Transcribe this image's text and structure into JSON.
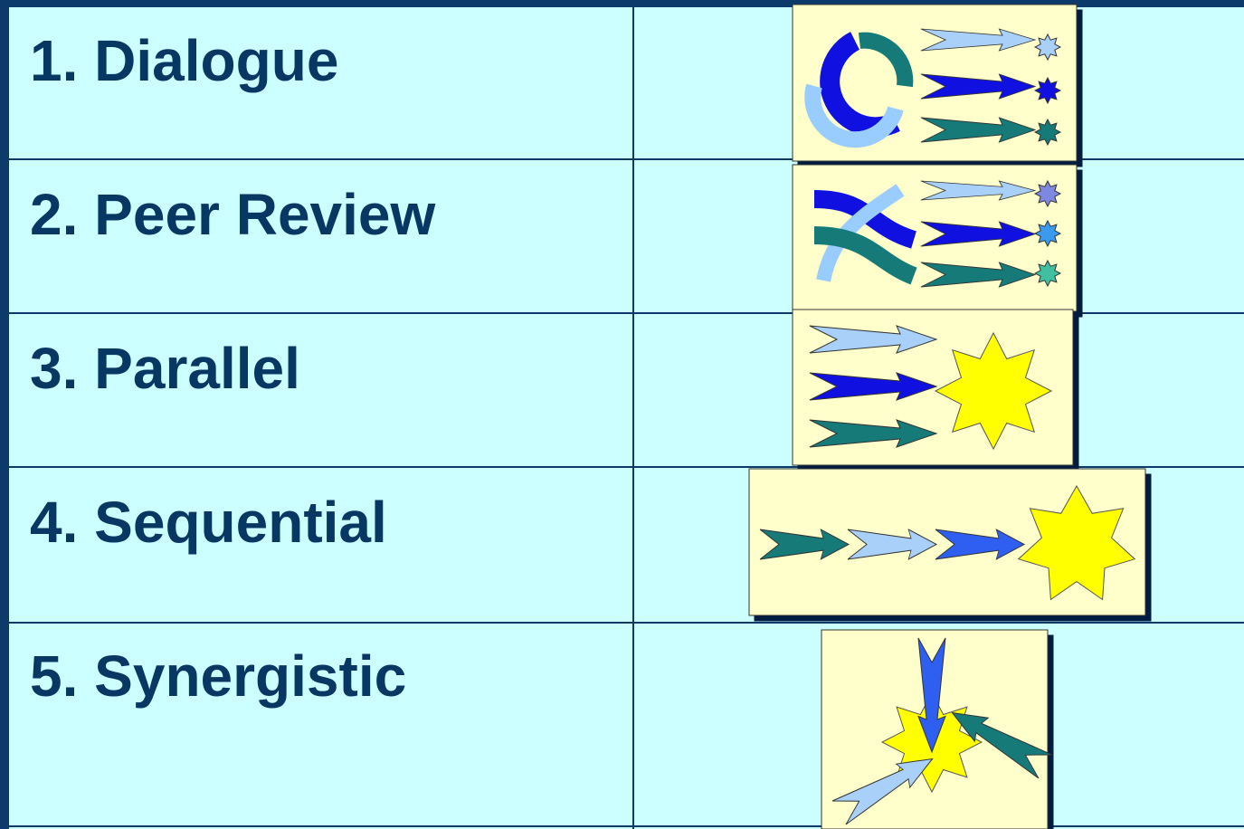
{
  "table": {
    "rows": [
      [
        "1. Dialogue"
      ],
      [
        "2. Peer Review"
      ],
      [
        "3. Parallel"
      ],
      [
        "4. Sequential"
      ],
      [
        "5. Synergistic"
      ]
    ]
  }
}
